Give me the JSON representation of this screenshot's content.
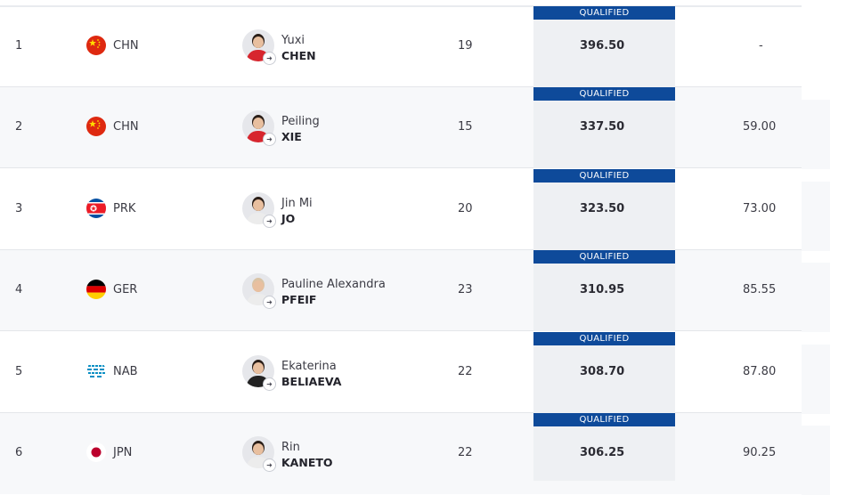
{
  "badge_label": "QUALIFIED",
  "colors": {
    "badge": "#0e4a9a",
    "score_bg": "#eef0f3",
    "alt_row": "#f7f8fa"
  },
  "rows": [
    {
      "rank": "1",
      "noc": "CHN",
      "flag": "china-flag-icon",
      "given": "Yuxi",
      "family": "CHEN",
      "age": "19",
      "score": "396.50",
      "behind": "-"
    },
    {
      "rank": "2",
      "noc": "CHN",
      "flag": "china-flag-icon",
      "given": "Peiling",
      "family": "XIE",
      "age": "15",
      "score": "337.50",
      "behind": "59.00"
    },
    {
      "rank": "3",
      "noc": "PRK",
      "flag": "north-korea-flag-icon",
      "given": "Jin Mi",
      "family": "JO",
      "age": "20",
      "score": "323.50",
      "behind": "73.00"
    },
    {
      "rank": "4",
      "noc": "GER",
      "flag": "germany-flag-icon",
      "given": "Pauline Alexandra",
      "family": "PFEIF",
      "age": "23",
      "score": "310.95",
      "behind": "85.55"
    },
    {
      "rank": "5",
      "noc": "NAB",
      "flag": "neutral-athletes-flag-icon",
      "given": "Ekaterina",
      "family": "BELIAEVA",
      "age": "22",
      "score": "308.70",
      "behind": "87.80"
    },
    {
      "rank": "6",
      "noc": "JPN",
      "flag": "japan-flag-icon",
      "given": "Rin",
      "family": "KANETO",
      "age": "22",
      "score": "306.25",
      "behind": "90.25"
    }
  ]
}
